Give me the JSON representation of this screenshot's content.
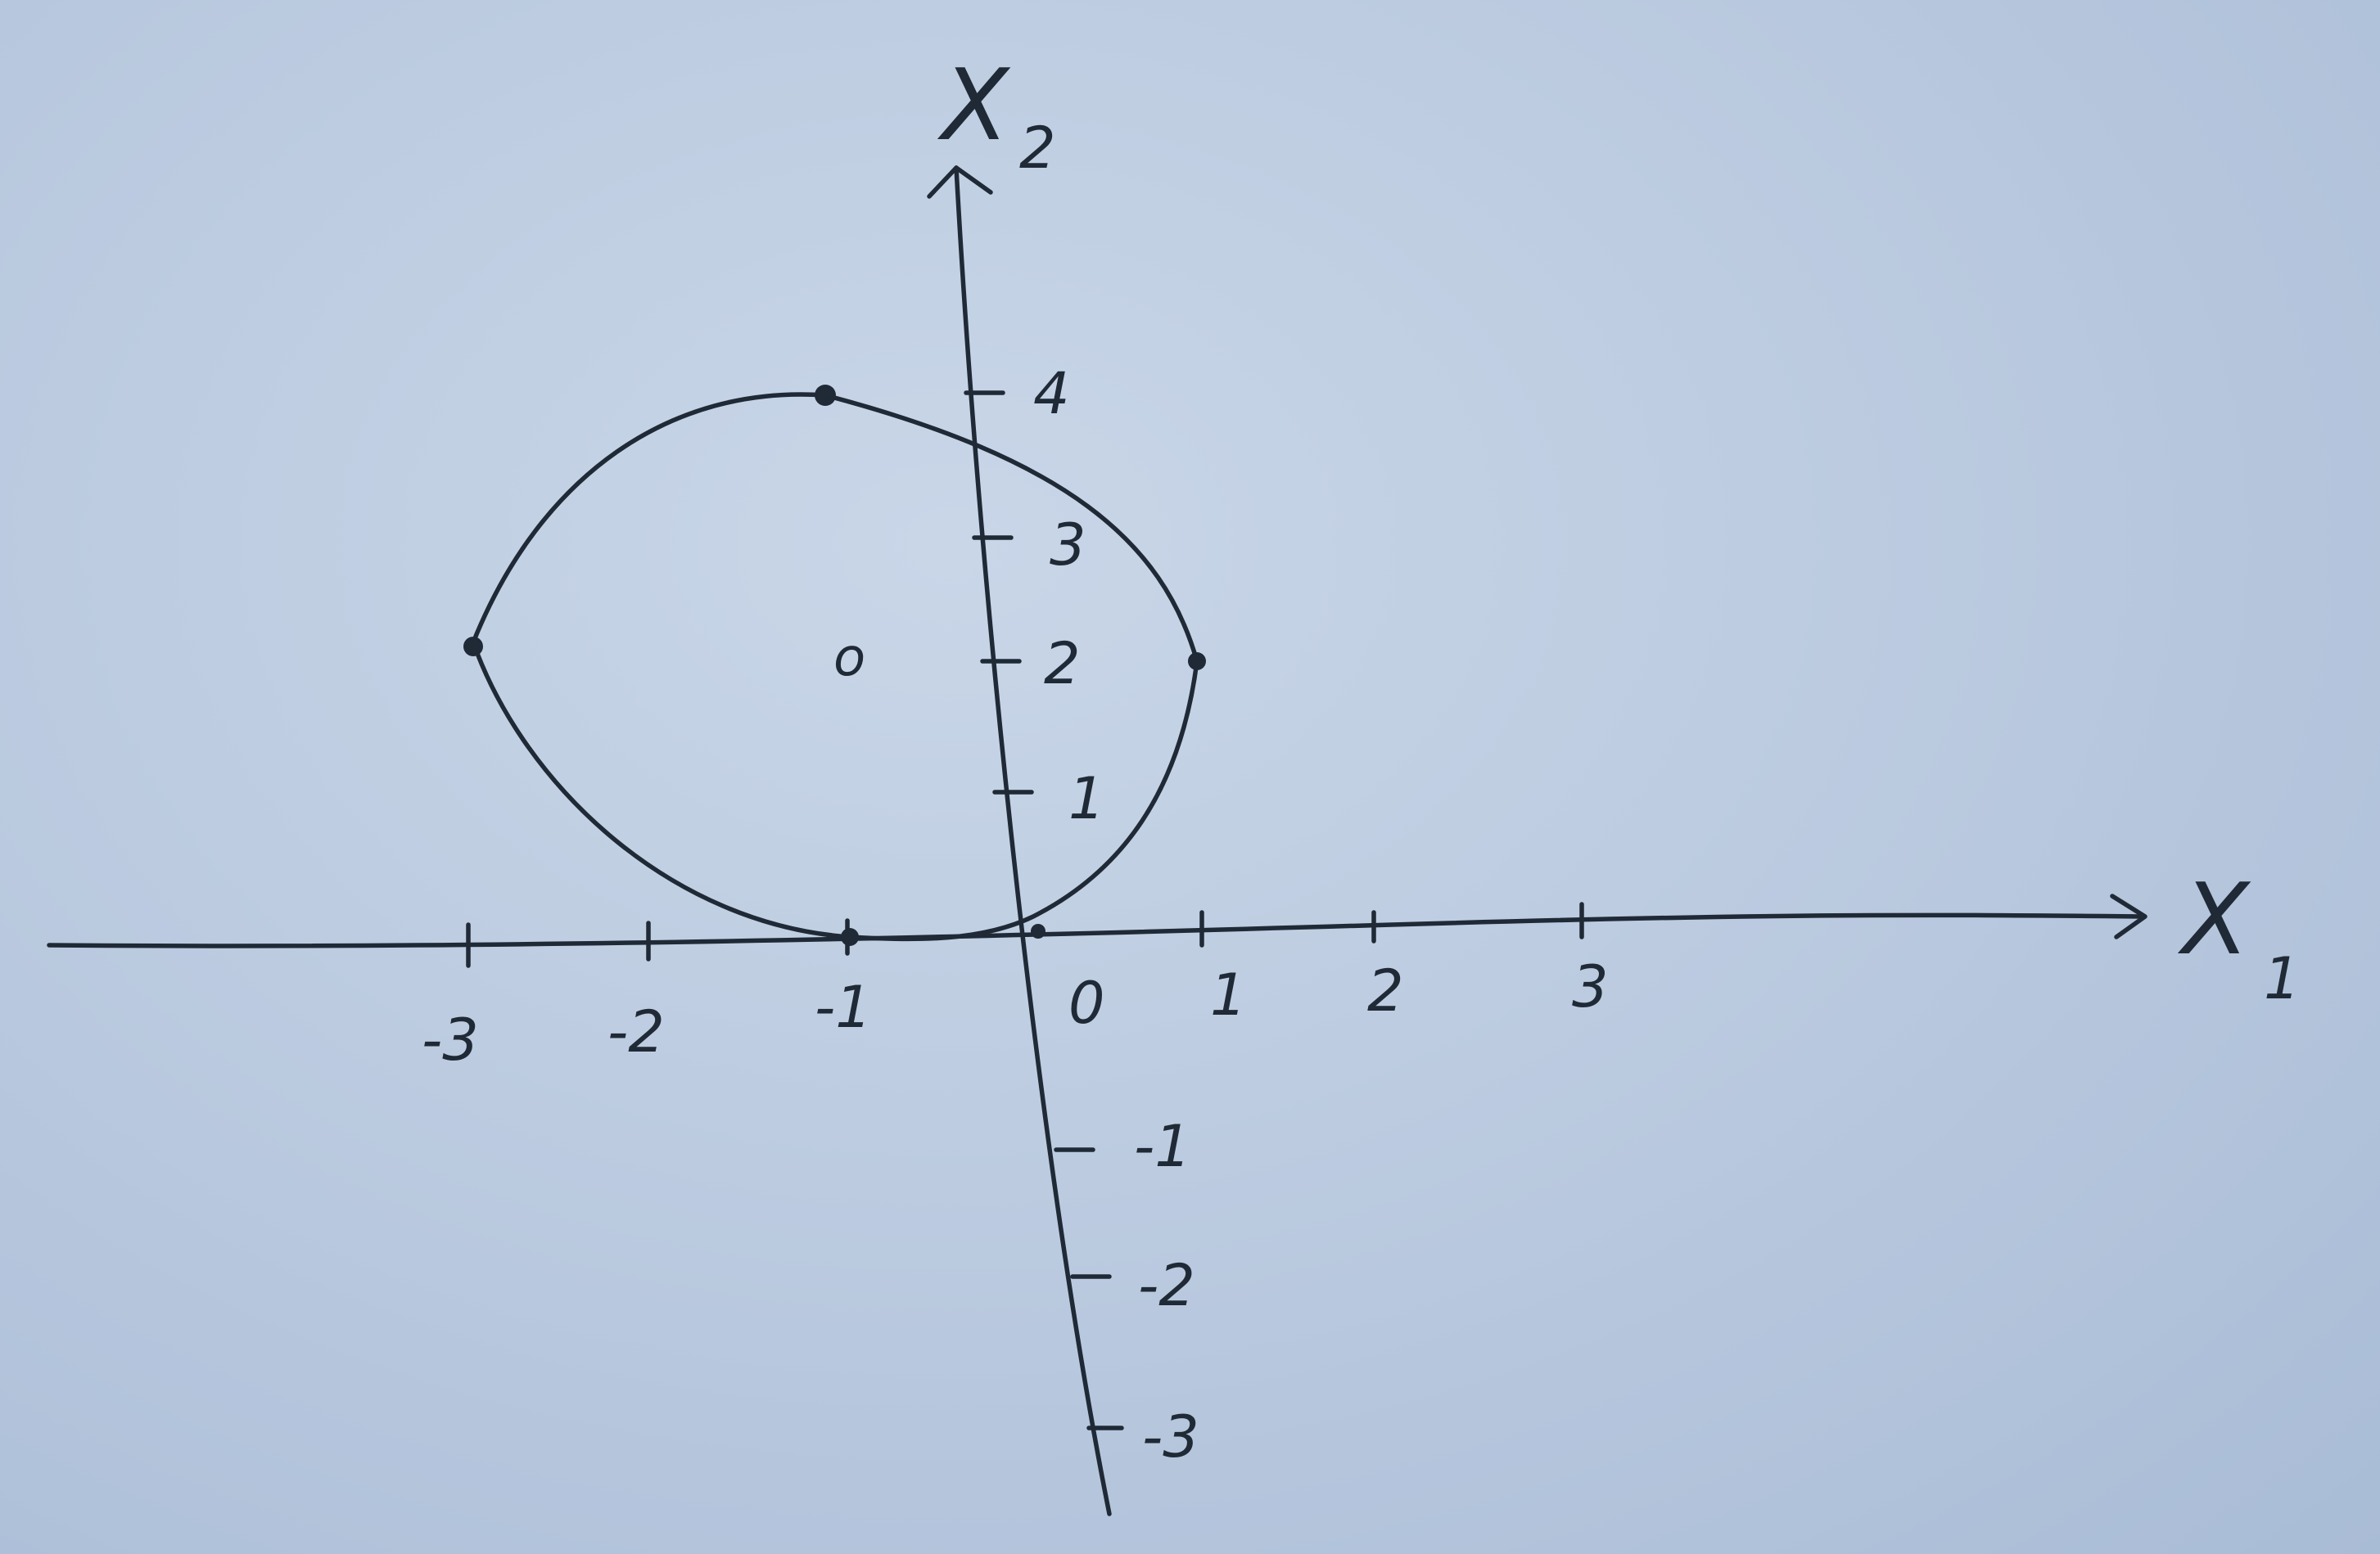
{
  "axes": {
    "x_name": "X",
    "x_subscript": "1",
    "y_name": "X",
    "y_subscript": "2"
  },
  "x_ticks": [
    "-3",
    "-2",
    "-1",
    "0",
    "1",
    "2",
    "3"
  ],
  "y_ticks": [
    "4",
    "3",
    "2",
    "1",
    "-1",
    "-2",
    "-3"
  ],
  "curve": {
    "center": [
      -1,
      2
    ],
    "marked_points": [
      [
        -1,
        4
      ],
      [
        -3,
        2
      ],
      [
        1,
        2
      ],
      [
        0,
        0
      ],
      [
        -1,
        0
      ]
    ],
    "center_marker": "o"
  }
}
